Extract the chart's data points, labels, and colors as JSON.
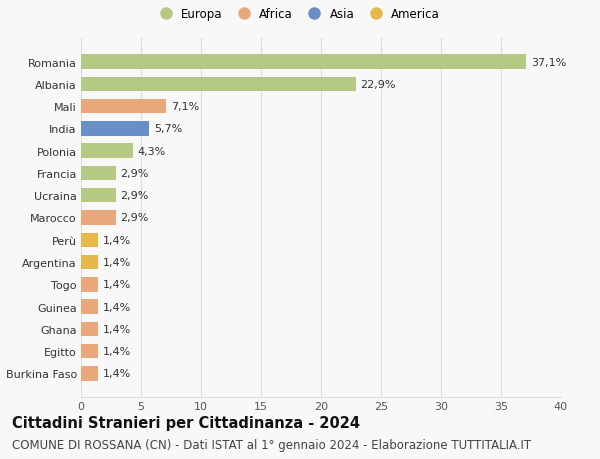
{
  "categories": [
    "Burkina Faso",
    "Egitto",
    "Ghana",
    "Guinea",
    "Togo",
    "Argentina",
    "Perù",
    "Marocco",
    "Ucraina",
    "Francia",
    "Polonia",
    "India",
    "Mali",
    "Albania",
    "Romania"
  ],
  "values": [
    1.4,
    1.4,
    1.4,
    1.4,
    1.4,
    1.4,
    1.4,
    2.9,
    2.9,
    2.9,
    4.3,
    5.7,
    7.1,
    22.9,
    37.1
  ],
  "labels": [
    "1,4%",
    "1,4%",
    "1,4%",
    "1,4%",
    "1,4%",
    "1,4%",
    "1,4%",
    "2,9%",
    "2,9%",
    "2,9%",
    "4,3%",
    "5,7%",
    "7,1%",
    "22,9%",
    "37,1%"
  ],
  "colors": [
    "#e8a87c",
    "#e8a87c",
    "#e8a87c",
    "#e8a87c",
    "#e8a87c",
    "#e6b84a",
    "#e6b84a",
    "#e8a87c",
    "#b5c985",
    "#b5c985",
    "#b5c985",
    "#6a8fc8",
    "#e8a87c",
    "#b5c985",
    "#b5c985"
  ],
  "legend_labels": [
    "Europa",
    "Africa",
    "Asia",
    "America"
  ],
  "legend_colors": [
    "#b5c985",
    "#e8a87c",
    "#6a8fc8",
    "#e6b84a"
  ],
  "title": "Cittadini Stranieri per Cittadinanza - 2024",
  "subtitle": "COMUNE DI ROSSANA (CN) - Dati ISTAT al 1° gennaio 2024 - Elaborazione TUTTITALIA.IT",
  "xlim": [
    0,
    40
  ],
  "xticks": [
    0,
    5,
    10,
    15,
    20,
    25,
    30,
    35,
    40
  ],
  "background_color": "#f8f8f8",
  "grid_color": "#dddddd",
  "bar_height": 0.65,
  "title_fontsize": 10.5,
  "subtitle_fontsize": 8.5,
  "label_fontsize": 8,
  "tick_fontsize": 8,
  "legend_fontsize": 8.5
}
